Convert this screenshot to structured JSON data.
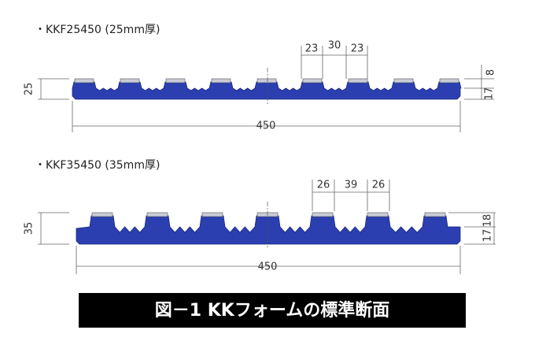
{
  "sections": [
    {
      "label": "・KKF25450 (25mm厚)",
      "height": "25",
      "width": "450",
      "top_dims": [
        "23",
        "30",
        "23"
      ],
      "right_dims": [
        "8",
        "17"
      ]
    },
    {
      "label": "・KKF35450 (35mm厚)",
      "height": "35",
      "width": "450",
      "top_dims": [
        "26",
        "39",
        "26"
      ],
      "right_dims": [
        "18",
        "17"
      ]
    }
  ],
  "caption": "図－1 KKフォームの標準断面"
}
